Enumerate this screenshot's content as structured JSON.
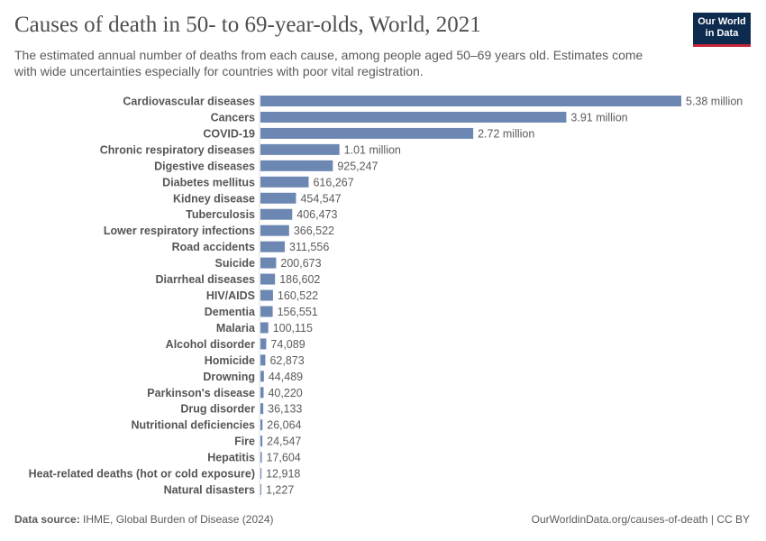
{
  "header": {
    "title": "Causes of death in 50- to 69-year-olds, World, 2021",
    "subtitle": "The estimated annual number of deaths from each cause, among people aged 50–69 years old. Estimates come with wide uncertainties especially for countries with poor vital registration.",
    "logo": "Our World in Data"
  },
  "footer": {
    "source_label": "Data source:",
    "source": "IHME, Global Burden of Disease (2024)",
    "url": "OurWorldinData.org/causes-of-death | CC BY"
  },
  "chart_data": {
    "type": "bar",
    "orientation": "horizontal",
    "bar_color": "#6d87b3",
    "title": "Causes of death in 50- to 69-year-olds, World, 2021",
    "categories": [
      "Cardiovascular diseases",
      "Cancers",
      "COVID-19",
      "Chronic respiratory diseases",
      "Digestive diseases",
      "Diabetes mellitus",
      "Kidney disease",
      "Tuberculosis",
      "Lower respiratory infections",
      "Road accidents",
      "Suicide",
      "Diarrheal diseases",
      "HIV/AIDS",
      "Dementia",
      "Malaria",
      "Alcohol disorder",
      "Homicide",
      "Drowning",
      "Parkinson's disease",
      "Drug disorder",
      "Nutritional deficiencies",
      "Fire",
      "Hepatitis",
      "Heat-related deaths (hot or cold exposure)",
      "Natural disasters"
    ],
    "values": [
      5380000,
      3910000,
      2720000,
      1010000,
      925247,
      616267,
      454547,
      406473,
      366522,
      311556,
      200673,
      186602,
      160522,
      156551,
      100115,
      74089,
      62873,
      44489,
      40220,
      36133,
      26064,
      24547,
      17604,
      12918,
      1227
    ],
    "labels": [
      "5.38 million",
      "3.91 million",
      "2.72 million",
      "1.01 million",
      "925,247",
      "616,267",
      "454,547",
      "406,473",
      "366,522",
      "311,556",
      "200,673",
      "186,602",
      "160,522",
      "156,551",
      "100,115",
      "74,089",
      "62,873",
      "44,489",
      "40,220",
      "36,133",
      "26,064",
      "24,547",
      "17,604",
      "12,918",
      "1,227"
    ],
    "grid": false
  }
}
